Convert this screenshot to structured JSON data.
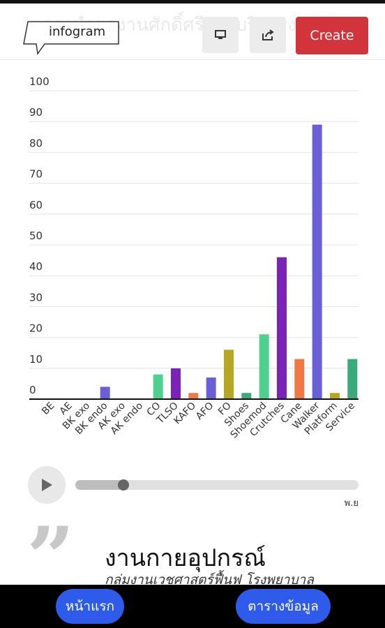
{
  "header": {
    "ghost_title": "การนำผลงานศักดิ์ศรีงานบริการงานพัฒ",
    "logo_text": "infogram",
    "create_label": "Create",
    "present_icon": "monitor-icon",
    "share_icon": "share-icon"
  },
  "chart_data": {
    "type": "bar",
    "categories": [
      "BE",
      "AE",
      "BK exo",
      "BK endo",
      "AK exo",
      "AK endo",
      "CO",
      "TLSO",
      "KAFO",
      "AFO",
      "FO",
      "Shoes",
      "Shoemod",
      "Crutches",
      "Cane",
      "Walker",
      "Platform",
      "Service"
    ],
    "values": [
      0,
      0,
      0,
      4,
      0,
      0,
      8,
      10,
      2,
      7,
      16,
      2,
      21,
      46,
      13,
      89,
      2,
      13
    ],
    "colors": [
      "#6a5acd",
      "#6a5acd",
      "#6a5acd",
      "#6b5fd8",
      "#6a5acd",
      "#6a5acd",
      "#4fd08e",
      "#7b23b8",
      "#f07845",
      "#6b5fd8",
      "#b7a624",
      "#3aaa7a",
      "#4fd08e",
      "#7b23b8",
      "#f07845",
      "#6b5fd8",
      "#b7a624",
      "#3aaa7a"
    ],
    "ylim": [
      0,
      100
    ],
    "yticks": [
      0,
      10,
      20,
      30,
      40,
      50,
      60,
      70,
      80,
      90,
      100
    ],
    "grid": true
  },
  "player": {
    "progress": 0.17,
    "time_label": "พ.ย"
  },
  "story": {
    "quote_glyph": "”",
    "title": "งานกายอุปกรณ์",
    "subtitle": "กลุ่มงานเวชศาสตร์ฟื้นฟู โรงพยาบาล"
  },
  "nav": {
    "home_label": "หน้าแรก",
    "table_label": "ตารางข้อมูล"
  }
}
